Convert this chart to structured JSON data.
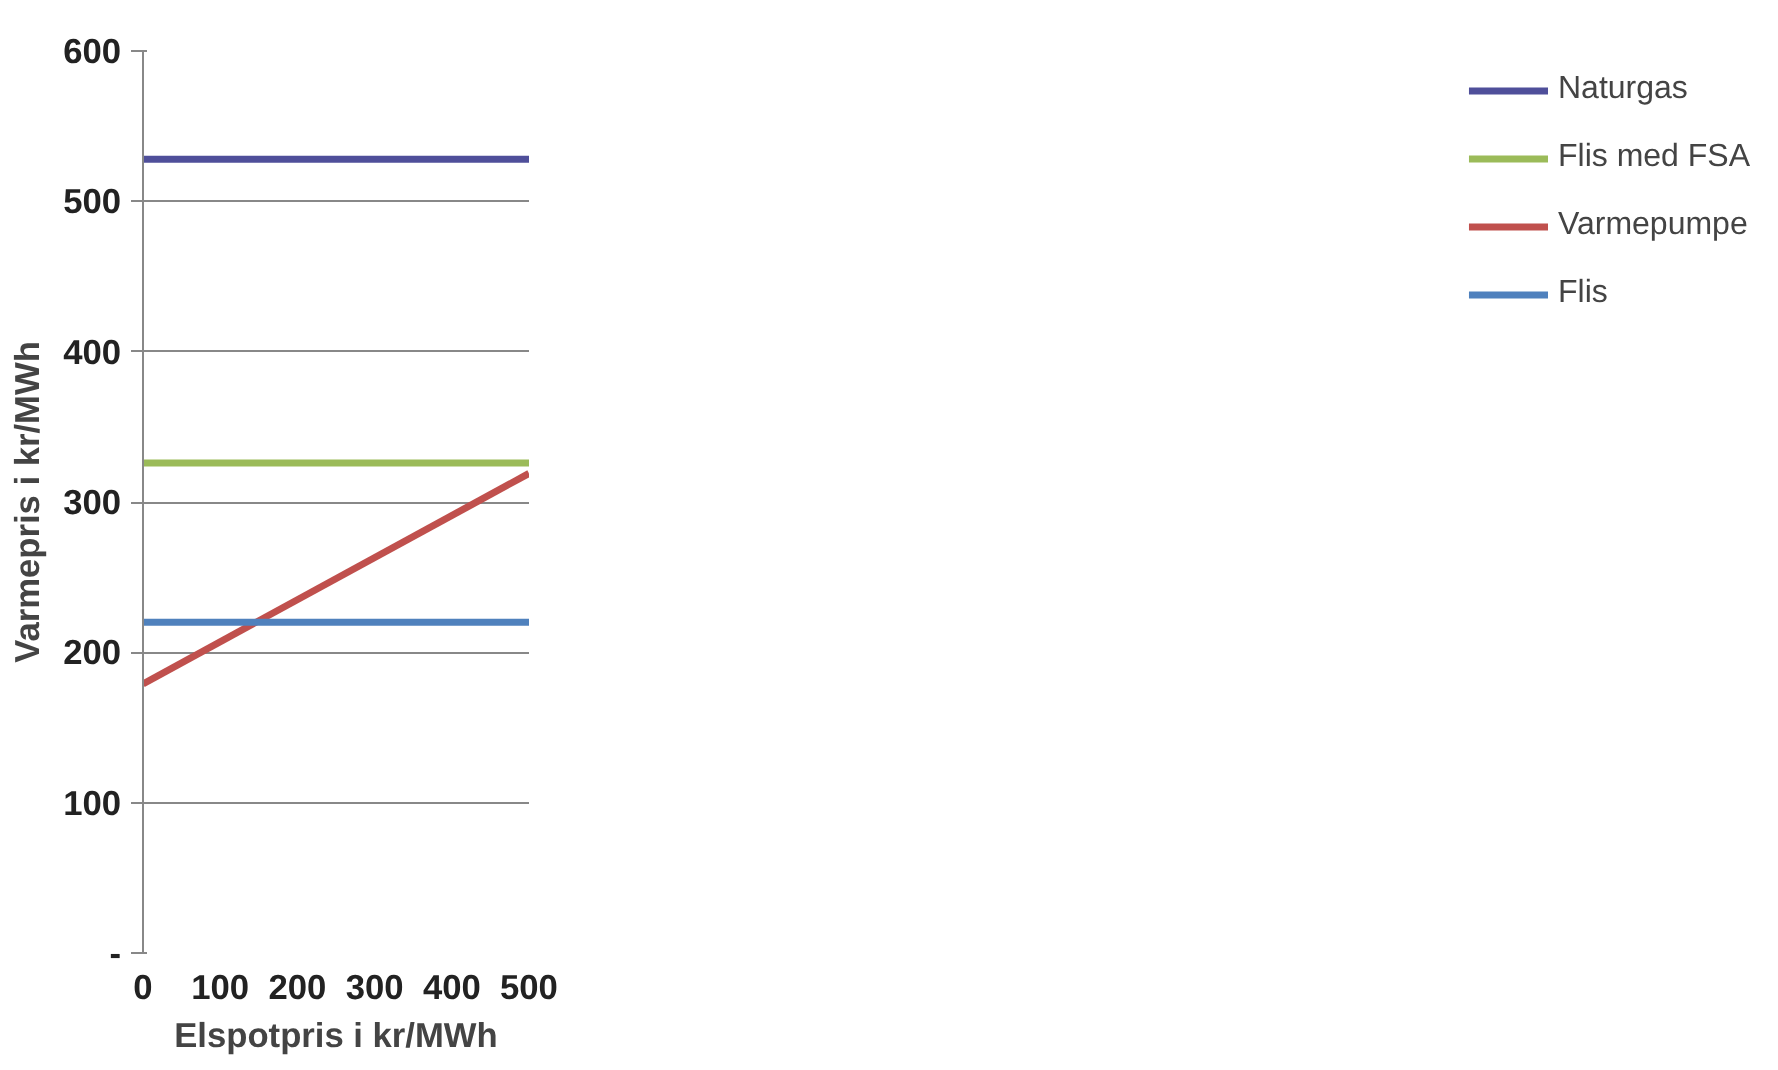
{
  "chart_data": {
    "type": "line",
    "xlabel": "Elspotpris i kr/MWh",
    "ylabel": "Varmepris i kr/MWh",
    "x": [
      0,
      500
    ],
    "series": [
      {
        "name": "Naturgas",
        "color": "#4f4f9a",
        "values": [
          528,
          528
        ]
      },
      {
        "name": "Flis med FSA",
        "color": "#9bbb59",
        "values": [
          326,
          326
        ]
      },
      {
        "name": "Varmepumpe",
        "color": "#c0504d",
        "values": [
          179,
          319
        ]
      },
      {
        "name": "Flis",
        "color": "#4f81bd",
        "values": [
          220,
          220
        ]
      }
    ],
    "xlim": [
      0,
      500
    ],
    "xticks": [
      0,
      100,
      200,
      300,
      400,
      500
    ],
    "ylim": [
      0,
      600
    ],
    "yticks": [
      {
        "value": 0,
        "label": "-"
      },
      100,
      200,
      300,
      400,
      500,
      600
    ],
    "grid": "y",
    "legend": "right"
  }
}
